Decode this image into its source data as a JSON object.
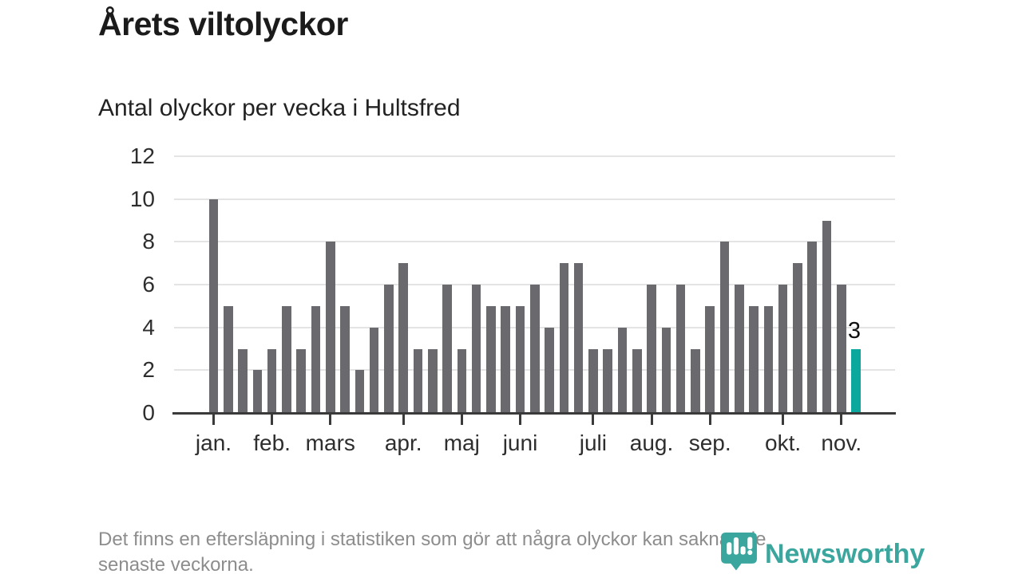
{
  "header": {
    "title": "Årets viltolyckor",
    "subtitle": "Antal olyckor per vecka i Hultsfred"
  },
  "chart_data": {
    "type": "bar",
    "title": "Årets viltolyckor",
    "subtitle": "Antal olyckor per vecka i Hultsfred",
    "xlabel": "",
    "ylabel": "",
    "ylim": [
      0,
      12
    ],
    "yticks": [
      0,
      2,
      4,
      6,
      8,
      10,
      12
    ],
    "grid": true,
    "legend": "none",
    "values": [
      10,
      5,
      3,
      2,
      3,
      5,
      3,
      5,
      8,
      5,
      2,
      4,
      6,
      7,
      3,
      3,
      6,
      3,
      6,
      5,
      5,
      5,
      6,
      4,
      7,
      7,
      3,
      3,
      4,
      3,
      6,
      4,
      6,
      3,
      5,
      8,
      6,
      5,
      5,
      6,
      7,
      8,
      9,
      6,
      3
    ],
    "month_ticks": [
      {
        "label": "jan.",
        "bar_index": 0
      },
      {
        "label": "feb.",
        "bar_index": 4
      },
      {
        "label": "mars",
        "bar_index": 8
      },
      {
        "label": "apr.",
        "bar_index": 13
      },
      {
        "label": "maj",
        "bar_index": 17
      },
      {
        "label": "juni",
        "bar_index": 21
      },
      {
        "label": "juli",
        "bar_index": 26
      },
      {
        "label": "aug.",
        "bar_index": 30
      },
      {
        "label": "sep.",
        "bar_index": 34
      },
      {
        "label": "okt.",
        "bar_index": 39
      },
      {
        "label": "nov.",
        "bar_index": 43
      }
    ],
    "bar_color": "#69696e",
    "grid_color": "#e4e4e4",
    "axis_color": "#3a3a3a",
    "highlight": {
      "index": 44,
      "color": "#0ca89e",
      "label": "3"
    }
  },
  "footer": {
    "lines": [
      "Det finns en eftersläpning i statistiken som gör att några olyckor kan saknas de",
      "senaste veckorna."
    ]
  },
  "logo": {
    "text": "Newsworthy",
    "color": "#3ba69e"
  }
}
